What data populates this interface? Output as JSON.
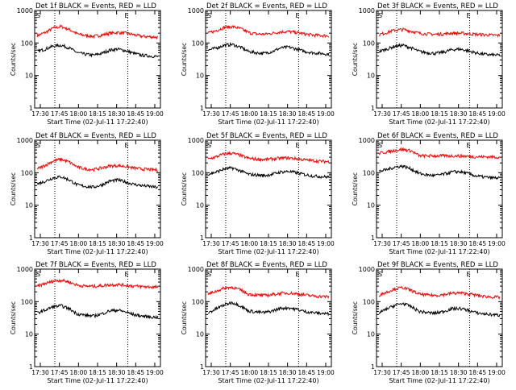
{
  "chart_data": [
    {
      "type": "line",
      "title": "Det 1f BLACK = Events, RED = LLD",
      "xlabel": "Start Time (02-Jul-11 17:22:40)",
      "ylabel": "Counts/sec",
      "marker_s": "S",
      "marker_e": "E",
      "x_ticks": [
        "17:30",
        "17:45",
        "18:00",
        "18:15",
        "18:30",
        "18:45",
        "19:00"
      ],
      "y_ticks": [
        "1",
        "10",
        "100",
        "1000"
      ],
      "ylim": [
        1,
        1000
      ],
      "yscale": "log",
      "series": [
        {
          "name": "LLD",
          "color": "#ff0000",
          "values": [
            170,
            210,
            290,
            320,
            260,
            190,
            170,
            160,
            175,
            200,
            210,
            200,
            180,
            160,
            155,
            150
          ]
        },
        {
          "name": "Events",
          "color": "#000000",
          "values": [
            55,
            65,
            80,
            85,
            70,
            50,
            45,
            42,
            48,
            60,
            65,
            58,
            48,
            42,
            40,
            38
          ]
        }
      ]
    },
    {
      "type": "line",
      "title": "Det 2f BLACK = Events, RED = LLD",
      "xlabel": "Start Time (02-Jul-11 17:22:40)",
      "ylabel": "Counts/sec",
      "marker_s": "S",
      "marker_e": "E",
      "x_ticks": [
        "17:30",
        "17:45",
        "18:00",
        "18:15",
        "18:30",
        "18:45",
        "19:00"
      ],
      "y_ticks": [
        "1",
        "10",
        "100",
        "1000"
      ],
      "ylim": [
        1,
        1000
      ],
      "yscale": "log",
      "series": [
        {
          "name": "LLD",
          "color": "#ff0000",
          "values": [
            200,
            240,
            300,
            320,
            280,
            210,
            190,
            185,
            200,
            220,
            225,
            210,
            190,
            175,
            170,
            165
          ]
        },
        {
          "name": "Events",
          "color": "#000000",
          "values": [
            60,
            70,
            85,
            90,
            75,
            55,
            50,
            48,
            55,
            70,
            75,
            65,
            55,
            50,
            48,
            45
          ]
        }
      ]
    },
    {
      "type": "line",
      "title": "Det 3f BLACK = Events, RED = LLD",
      "xlabel": "Start Time (02-Jul-11 17:22:40)",
      "ylabel": "Counts/sec",
      "marker_s": "S",
      "marker_e": "E",
      "x_ticks": [
        "17:30",
        "17:45",
        "18:00",
        "18:15",
        "18:30",
        "18:45",
        "19:00"
      ],
      "y_ticks": [
        "1",
        "10",
        "100",
        "1000"
      ],
      "ylim": [
        1,
        1000
      ],
      "yscale": "log",
      "series": [
        {
          "name": "LLD",
          "color": "#ff0000",
          "values": [
            180,
            210,
            250,
            260,
            230,
            200,
            190,
            185,
            190,
            200,
            200,
            195,
            185,
            180,
            175,
            170
          ]
        },
        {
          "name": "Events",
          "color": "#000000",
          "values": [
            55,
            65,
            80,
            85,
            70,
            55,
            50,
            48,
            52,
            62,
            65,
            58,
            50,
            45,
            43,
            42
          ]
        }
      ]
    },
    {
      "type": "line",
      "title": "Det 4f BLACK = Events, RED = LLD",
      "xlabel": "Start Time (02-Jul-11 17:22:40)",
      "ylabel": "Counts/sec",
      "marker_s": "S",
      "marker_e": "E",
      "x_ticks": [
        "17:30",
        "17:45",
        "18:00",
        "18:15",
        "18:30",
        "18:45",
        "19:00"
      ],
      "y_ticks": [
        "1",
        "10",
        "100",
        "1000"
      ],
      "ylim": [
        1,
        1000
      ],
      "yscale": "log",
      "series": [
        {
          "name": "LLD",
          "color": "#ff0000",
          "values": [
            130,
            170,
            230,
            260,
            210,
            150,
            130,
            125,
            140,
            160,
            165,
            155,
            140,
            130,
            125,
            120
          ]
        },
        {
          "name": "Events",
          "color": "#000000",
          "values": [
            45,
            55,
            70,
            75,
            60,
            42,
            38,
            36,
            42,
            55,
            60,
            52,
            44,
            40,
            38,
            35
          ]
        }
      ]
    },
    {
      "type": "line",
      "title": "Det 5f BLACK = Events, RED = LLD",
      "xlabel": "Start Time (02-Jul-11 17:22:40)",
      "ylabel": "Counts/sec",
      "marker_s": "S",
      "marker_e": "E",
      "x_ticks": [
        "17:30",
        "17:45",
        "18:00",
        "18:15",
        "18:30",
        "18:45",
        "19:00"
      ],
      "y_ticks": [
        "1",
        "10",
        "100",
        "1000"
      ],
      "ylim": [
        1,
        1000
      ],
      "yscale": "log",
      "series": [
        {
          "name": "LLD",
          "color": "#ff0000",
          "values": [
            260,
            310,
            380,
            400,
            340,
            280,
            260,
            255,
            265,
            280,
            285,
            270,
            250,
            235,
            225,
            220
          ]
        },
        {
          "name": "Events",
          "color": "#000000",
          "values": [
            90,
            105,
            130,
            140,
            115,
            90,
            85,
            82,
            90,
            105,
            110,
            100,
            88,
            80,
            76,
            74
          ]
        }
      ]
    },
    {
      "type": "line",
      "title": "Det 6f BLACK = Events, RED = LLD",
      "xlabel": "Start Time (02-Jul-11 17:22:40)",
      "ylabel": "Counts/sec",
      "marker_s": "S",
      "marker_e": "E",
      "x_ticks": [
        "17:30",
        "17:45",
        "18:00",
        "18:15",
        "18:30",
        "18:45",
        "19:00"
      ],
      "y_ticks": [
        "1",
        "10",
        "100",
        "1000"
      ],
      "ylim": [
        1,
        1000
      ],
      "yscale": "log",
      "series": [
        {
          "name": "LLD",
          "color": "#ff0000",
          "values": [
            400,
            440,
            490,
            520,
            470,
            330,
            330,
            330,
            330,
            330,
            330,
            320,
            310,
            310,
            305,
            300
          ]
        },
        {
          "name": "Events",
          "color": "#000000",
          "values": [
            110,
            125,
            150,
            160,
            130,
            95,
            85,
            82,
            90,
            105,
            108,
            95,
            80,
            74,
            70,
            68
          ]
        }
      ]
    },
    {
      "type": "line",
      "title": "Det 7f BLACK = Events, RED = LLD",
      "xlabel": "Start Time (02-Jul-11 17:22:40)",
      "ylabel": "Counts/sec",
      "marker_s": "S",
      "marker_e": "E",
      "x_ticks": [
        "17:30",
        "17:45",
        "18:00",
        "18:15",
        "18:30",
        "18:45",
        "19:00"
      ],
      "y_ticks": [
        "1",
        "10",
        "100",
        "1000"
      ],
      "ylim": [
        1,
        1000
      ],
      "yscale": "log",
      "series": [
        {
          "name": "LLD",
          "color": "#ff0000",
          "values": [
            300,
            360,
            430,
            460,
            400,
            320,
            300,
            295,
            310,
            330,
            335,
            320,
            300,
            290,
            285,
            280
          ]
        },
        {
          "name": "Events",
          "color": "#000000",
          "values": [
            45,
            55,
            70,
            75,
            60,
            42,
            38,
            36,
            42,
            52,
            55,
            48,
            40,
            36,
            34,
            33
          ]
        }
      ]
    },
    {
      "type": "line",
      "title": "Det 8f BLACK = Events, RED = LLD",
      "xlabel": "Start Time (02-Jul-11 17:22:40)",
      "ylabel": "Counts/sec",
      "marker_s": "S",
      "marker_e": "E",
      "x_ticks": [
        "17:30",
        "17:45",
        "18:00",
        "18:15",
        "18:30",
        "18:45",
        "19:00"
      ],
      "y_ticks": [
        "1",
        "10",
        "100",
        "1000"
      ],
      "ylim": [
        1,
        1000
      ],
      "yscale": "log",
      "series": [
        {
          "name": "LLD",
          "color": "#ff0000",
          "values": [
            170,
            210,
            260,
            280,
            230,
            170,
            160,
            155,
            165,
            180,
            185,
            175,
            160,
            150,
            145,
            140
          ]
        },
        {
          "name": "Events",
          "color": "#000000",
          "values": [
            45,
            60,
            80,
            95,
            75,
            52,
            48,
            46,
            52,
            62,
            65,
            58,
            50,
            46,
            44,
            42
          ]
        }
      ]
    },
    {
      "type": "line",
      "title": "Det 9f BLACK = Events, RED = LLD",
      "xlabel": "Start Time (02-Jul-11 17:22:40)",
      "ylabel": "Counts/sec",
      "marker_s": "S",
      "marker_e": "E",
      "x_ticks": [
        "17:30",
        "17:45",
        "18:00",
        "18:15",
        "18:30",
        "18:45",
        "19:00"
      ],
      "y_ticks": [
        "1",
        "10",
        "100",
        "1000"
      ],
      "ylim": [
        1,
        1000
      ],
      "yscale": "log",
      "series": [
        {
          "name": "LLD",
          "color": "#ff0000",
          "values": [
            160,
            200,
            250,
            270,
            220,
            170,
            160,
            155,
            165,
            180,
            185,
            175,
            160,
            145,
            140,
            135
          ]
        },
        {
          "name": "Events",
          "color": "#000000",
          "values": [
            45,
            60,
            78,
            88,
            70,
            50,
            46,
            44,
            50,
            60,
            62,
            55,
            46,
            42,
            40,
            38
          ]
        }
      ]
    }
  ]
}
